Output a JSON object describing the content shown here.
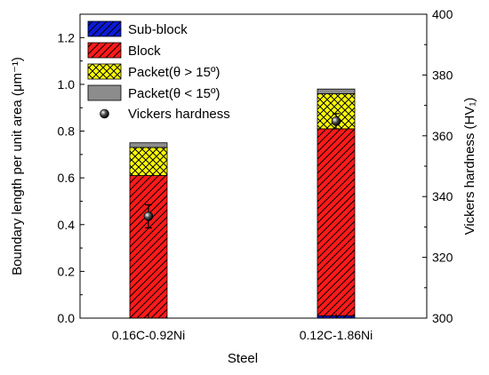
{
  "chart_data": {
    "type": "bar",
    "stacked": true,
    "categories": [
      "0.16C-0.92Ni",
      "0.12C-1.86Ni"
    ],
    "series": [
      {
        "name": "Sub-block",
        "values": [
          0.0,
          0.01
        ],
        "color": "#0b1ad6",
        "pattern": "diagonal-hatch"
      },
      {
        "name": "Block",
        "values": [
          0.61,
          0.8
        ],
        "color": "#ff1a1a",
        "pattern": "diagonal-hatch"
      },
      {
        "name": "Packet(θ > 15º)",
        "values": [
          0.12,
          0.15
        ],
        "color": "#ffff00",
        "pattern": "cross-hatch"
      },
      {
        "name": "Packet(θ < 15º)",
        "values": [
          0.02,
          0.02
        ],
        "color": "#8c8c8c",
        "pattern": "solid"
      }
    ],
    "hardness": {
      "name": "Vickers hardness",
      "values": [
        333.5,
        364.8
      ],
      "errors": [
        3.8,
        2.5
      ]
    },
    "legend_labels": [
      "Sub-block",
      "Block",
      "Packet(θ > 15º)",
      "Packet(θ < 15º)",
      "Vickers hardness"
    ],
    "xlabel": "Steel",
    "ylabel_left": "Boundary length per unit area (μm⁻¹)",
    "ylabel_right": "Vickers hardness (HV₁)",
    "ylim_left": [
      0,
      1.3
    ],
    "ylim_right": [
      300,
      400
    ],
    "yticks_left": [
      "0.0",
      "0.2",
      "0.4",
      "0.6",
      "0.8",
      "1.0",
      "1.2"
    ],
    "yticks_right": [
      "300",
      "320",
      "340",
      "360",
      "380",
      "400"
    ],
    "legend_position": "top-left",
    "grid": false
  }
}
